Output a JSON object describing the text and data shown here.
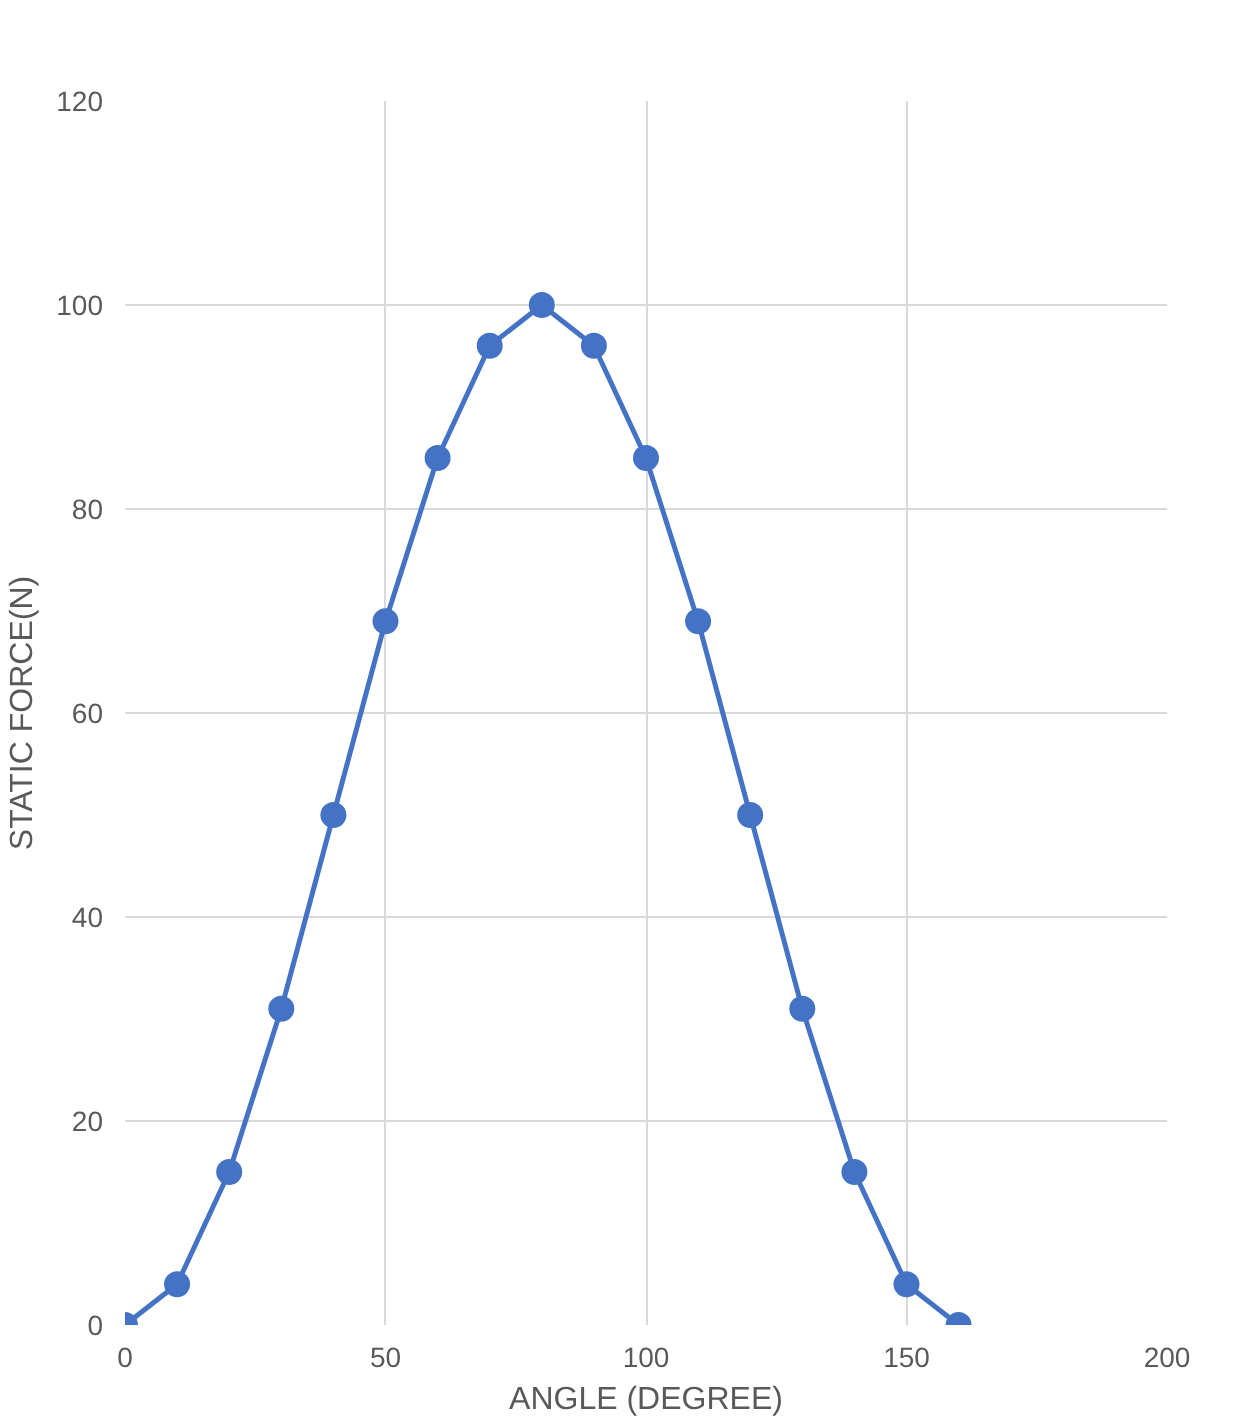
{
  "chart_data": {
    "type": "line",
    "xlabel": "ANGLE (DEGREE)",
    "ylabel": "STATIC FORCE(N)",
    "x": [
      0,
      10,
      20,
      30,
      40,
      50,
      60,
      70,
      80,
      90,
      100,
      110,
      120,
      130,
      140,
      150,
      160
    ],
    "series": [
      {
        "color": "#4472c4",
        "values": [
          0,
          4,
          15,
          31,
          50,
          69,
          85,
          96,
          100,
          96,
          85,
          69,
          50,
          31,
          15,
          4,
          0
        ]
      }
    ],
    "xlim": [
      0,
      200
    ],
    "ylim": [
      0,
      120
    ],
    "xticks": [
      0,
      50,
      100,
      150,
      200
    ],
    "yticks": [
      0,
      20,
      40,
      60,
      80,
      100,
      120
    ],
    "grid": true,
    "marker": "circle",
    "line_style": "solid"
  }
}
